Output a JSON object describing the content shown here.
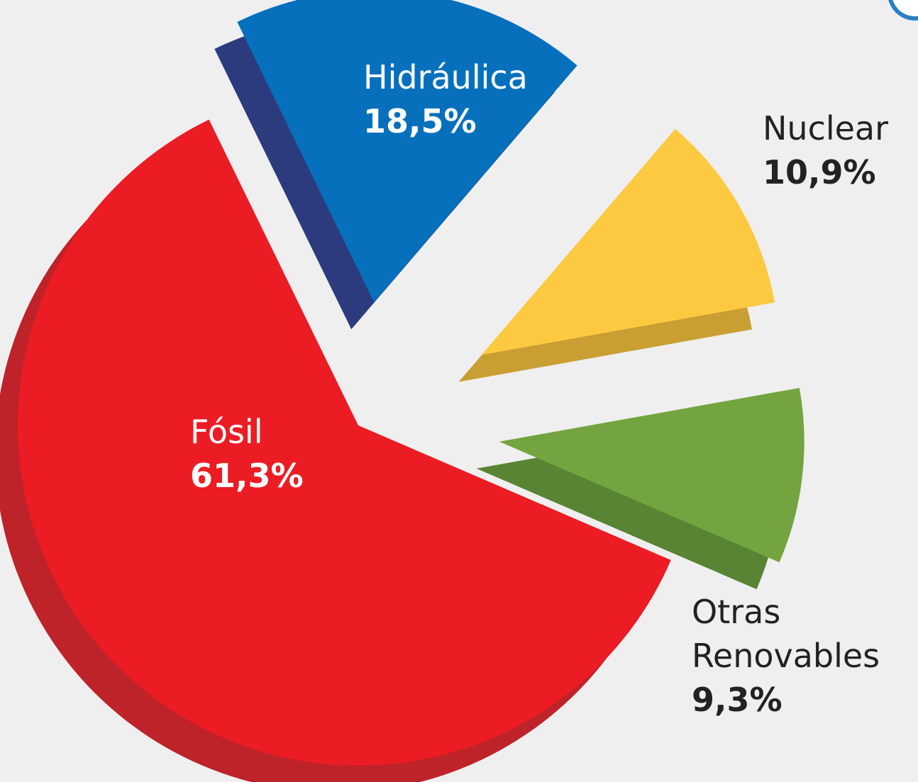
{
  "chart_data": {
    "type": "pie",
    "categories": [
      "Hidráulica",
      "Nuclear",
      "Otras Renovables",
      "Fósil"
    ],
    "values": [
      18.5,
      10.9,
      9.3,
      61.3
    ],
    "value_labels": [
      "18,5%",
      "10,9%",
      "9,3%",
      "61,3%"
    ],
    "colors": [
      "#0670bd",
      "#fdc941",
      "#74a43f",
      "#ec1c24"
    ],
    "side_colors": [
      "#2c3b7e",
      "#c99f33",
      "#588433",
      "#be2329"
    ]
  }
}
